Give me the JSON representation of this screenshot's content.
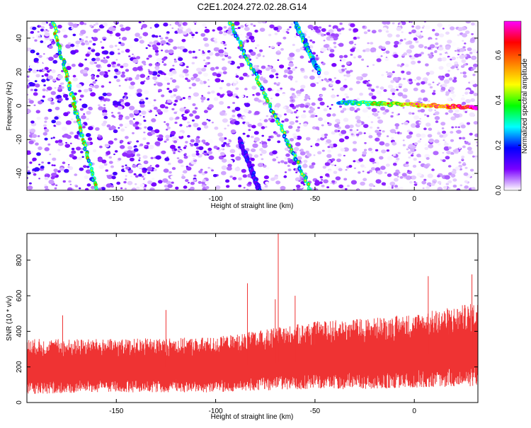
{
  "figure_title": "C2E1.2024.272.02.28.G14",
  "colorbar": {
    "label": "Normalized spectral amplitude",
    "ticks": [
      0.0,
      0.2,
      0.4,
      0.6
    ],
    "tick_labels": [
      "0.0",
      "0.2",
      "0.4",
      "0.6"
    ],
    "range": [
      0.0,
      0.75
    ],
    "colors": [
      "#ffffff",
      "#7b00ff",
      "#0000ff",
      "#00ffff",
      "#00ff00",
      "#ffff00",
      "#ff7f00",
      "#ff0000",
      "#ff00ff"
    ]
  },
  "chart_data": [
    {
      "type": "heatmap",
      "title": "C2E1.2024.272.02.28.G14",
      "xlabel": "Height of straight line (km)",
      "ylabel": "Frequency (Hz)",
      "xlim": [
        -195,
        32
      ],
      "ylim": [
        -50,
        50
      ],
      "xticks": [
        -150,
        -100,
        -50,
        0
      ],
      "xtick_labels": [
        "-150",
        "-100",
        "-50",
        "0"
      ],
      "yticks": [
        -40,
        -20,
        0,
        20,
        40
      ],
      "ytick_labels": [
        "-40",
        "-20",
        "0",
        "20",
        "40"
      ],
      "features": [
        {
          "name": "diagonal-track-1",
          "from": [
            -182,
            50
          ],
          "to": [
            -160,
            -50
          ],
          "amplitude": 0.35
        },
        {
          "name": "diagonal-track-2",
          "from": [
            -93,
            50
          ],
          "to": [
            -52,
            -50
          ],
          "amplitude": 0.3
        },
        {
          "name": "diagonal-track-3",
          "from": [
            -88,
            -20
          ],
          "to": [
            -78,
            -50
          ],
          "amplitude": 0.15
        },
        {
          "name": "diagonal-track-4",
          "from": [
            -60,
            50
          ],
          "to": [
            -48,
            20
          ],
          "amplitude": 0.25
        },
        {
          "name": "carrier-line",
          "from": [
            -38,
            2
          ],
          "to": [
            32,
            -1
          ],
          "amplitude": 0.7
        }
      ]
    },
    {
      "type": "area",
      "xlabel": "Height of straight line (km)",
      "ylabel": "SNR (10 * v/v)",
      "xlim": [
        -195,
        32
      ],
      "ylim": [
        0,
        950
      ],
      "xticks": [
        -150,
        -100,
        -50,
        0
      ],
      "xtick_labels": [
        "-150",
        "-100",
        "-50",
        "0"
      ],
      "yticks": [
        0,
        200,
        400,
        600,
        800
      ],
      "ytick_labels": [
        "0",
        "200",
        "400",
        "600",
        "800"
      ],
      "color": "#ef3333",
      "envelope": {
        "x": [
          -195,
          -150,
          -100,
          -80,
          -50,
          -20,
          0,
          32
        ],
        "mean": [
          190,
          195,
          200,
          215,
          240,
          255,
          265,
          300
        ],
        "upper": [
          330,
          330,
          340,
          370,
          420,
          440,
          460,
          520
        ],
        "lower": [
          60,
          70,
          70,
          80,
          90,
          90,
          100,
          110
        ]
      },
      "spikes": [
        {
          "x": -68.5,
          "y": 950
        },
        {
          "x": -70,
          "y": 580
        },
        {
          "x": -84,
          "y": 670
        },
        {
          "x": 7,
          "y": 710
        },
        {
          "x": 29,
          "y": 720
        },
        {
          "x": -177,
          "y": 490
        },
        {
          "x": -125,
          "y": 520
        },
        {
          "x": -60,
          "y": 600
        }
      ]
    }
  ]
}
